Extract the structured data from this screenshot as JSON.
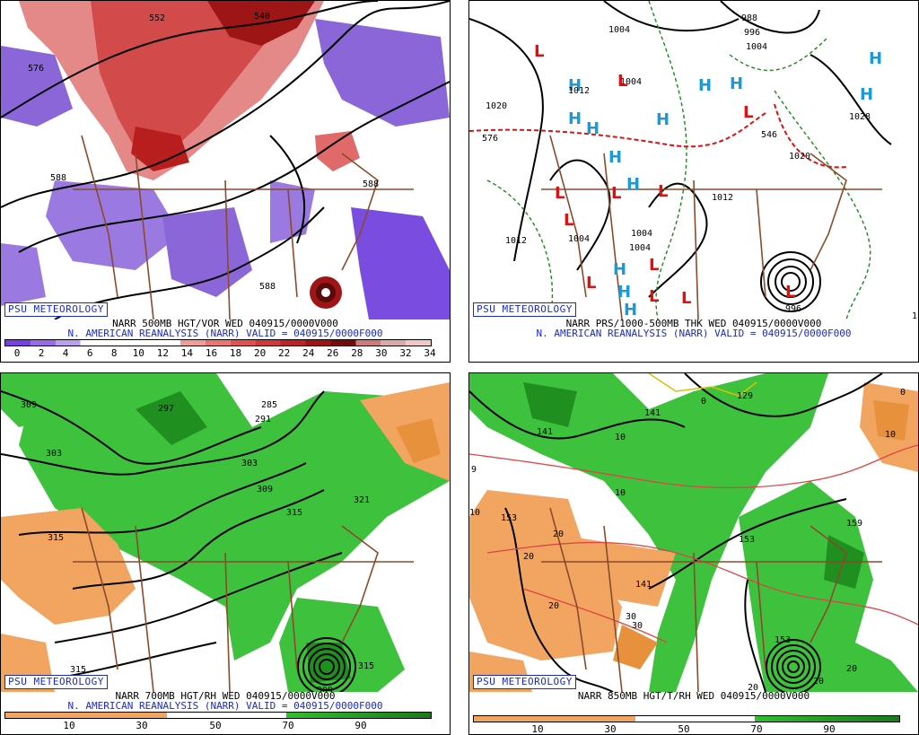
{
  "panels": [
    {
      "id": "p1",
      "badge": "PSU METEOROLOGY",
      "line1": "NARR 500MB HGT/VOR WED 040915/0000V000",
      "line2": "N. AMERICAN REANALYSIS (NARR) VALID = 040915/0000F000",
      "colorbar_ticks": [
        "0",
        "2",
        "4",
        "6",
        "8",
        "10",
        "12",
        "14",
        "16",
        "18",
        "20",
        "22",
        "24",
        "26",
        "28",
        "30",
        "32",
        "34"
      ],
      "colorbar_colors": [
        "#7a3fe0",
        "#9a6ae8",
        "#b9a0ee",
        "#ffffff",
        "#ffffff",
        "#ffffff",
        "#ffffff",
        "#f29b9b",
        "#ec7474",
        "#e05252",
        "#d23838",
        "#bb2525",
        "#9e1515",
        "#7a0a0a",
        "#cc7a7a",
        "#ddaaaa",
        "#f0c8c8"
      ],
      "contour_labels": [
        "576",
        "588",
        "588",
        "588",
        "540",
        "552"
      ]
    },
    {
      "id": "p2",
      "badge": "PSU METEOROLOGY",
      "line1": "NARR PRS/1000-500MB THK WED 040915/0000V000",
      "line2": "N. AMERICAN REANALYSIS (NARR) VALID = 040915/0000F000",
      "contour_labels": [
        "1004",
        "988",
        "996",
        "1004",
        "1012",
        "1020",
        "1004",
        "1028",
        "1020",
        "1012",
        "1012",
        "1004",
        "1004",
        "1004",
        "996",
        "576",
        "546",
        "1"
      ],
      "low_label": "L",
      "high_label": "H"
    },
    {
      "id": "p3",
      "badge": "PSU METEOROLOGY",
      "line1": "NARR 700MB HGT/RH WED 040915/0000V000",
      "line2": "N. AMERICAN REANALYSIS (NARR) VALID = 040915/0000F000",
      "colorbar_ticks": [
        "10",
        "30",
        "50",
        "70",
        "90"
      ],
      "contour_labels": [
        "309",
        "297",
        "285",
        "291",
        "303",
        "303",
        "309",
        "315",
        "321",
        "315",
        "315",
        "309",
        "315"
      ]
    },
    {
      "id": "p4",
      "badge": "PSU METEOROLOGY",
      "line1": "NARR 850MB HGT/T/RH WED 040915/0000V000",
      "colorbar_ticks": [
        "10",
        "30",
        "50",
        "70",
        "90"
      ],
      "contour_labels": [
        "141",
        "141",
        "153",
        "153",
        "141",
        "153",
        "159",
        "9",
        "129",
        "20",
        "20",
        "20",
        "30",
        "30",
        "10",
        "10",
        "10",
        "10",
        "20",
        "20",
        "20",
        "0",
        "0"
      ]
    }
  ],
  "colors": {
    "vort_low": "#8a66d8",
    "vort_high": "#cc2a2a",
    "rh_dry": "#f2a560",
    "rh_moist": "#2fbf2f",
    "border": "#8b4a2a",
    "badge_blue": "#1a2ac8",
    "low_red": "#e01010",
    "high_cyan": "#1a9ad8"
  }
}
